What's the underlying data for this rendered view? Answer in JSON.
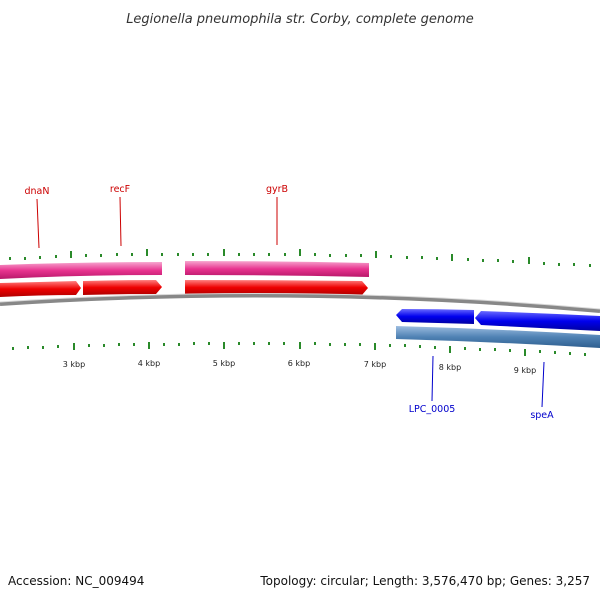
{
  "title": "Legionella pneumophila str. Corby, complete genome",
  "footer": {
    "accession": "Accession: NC_009494",
    "summary": "Topology: circular; Length: 3,576,470 bp; Genes: 3,257"
  },
  "ruler": {
    "labels": [
      "3 kbp",
      "4 kbp",
      "5 kbp",
      "6 kbp",
      "7 kbp",
      "8 kbp",
      "9 kbp"
    ]
  },
  "genes": {
    "forward_labels": [
      "dnaN",
      "recF",
      "gyrB"
    ],
    "reverse_labels": [
      "LPC_0005",
      "speA"
    ]
  },
  "colors": {
    "forward_label": "#cc0000",
    "reverse_label": "#0000cc",
    "pink_feature": "#e8338f",
    "red_feature": "#ee0000",
    "blue_feature": "#0000ee",
    "steel_feature": "#4f82b4",
    "backbone": "#888888",
    "tick": "#2a8a2a"
  }
}
